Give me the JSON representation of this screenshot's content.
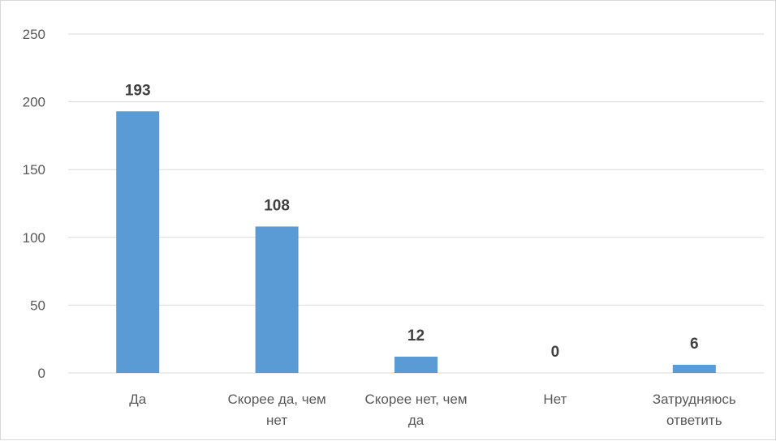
{
  "chart_data": {
    "type": "bar",
    "categories": [
      [
        "Да"
      ],
      [
        "Скорее да, чем",
        "нет"
      ],
      [
        "Скорее нет, чем",
        "да"
      ],
      [
        "Нет"
      ],
      [
        "Затрудняюсь",
        "ответить"
      ]
    ],
    "values": [
      193,
      108,
      12,
      0,
      6
    ],
    "data_labels": [
      "193",
      "108",
      "12",
      "0",
      "6"
    ],
    "title": "",
    "xlabel": "",
    "ylabel": "",
    "ylim": [
      0,
      250
    ],
    "y_ticks": [
      "0",
      "50",
      "100",
      "150",
      "200",
      "250"
    ],
    "grid": true,
    "legend": "none",
    "bar_color": "#5b9bd5",
    "grid_color": "#d9d9d9"
  }
}
